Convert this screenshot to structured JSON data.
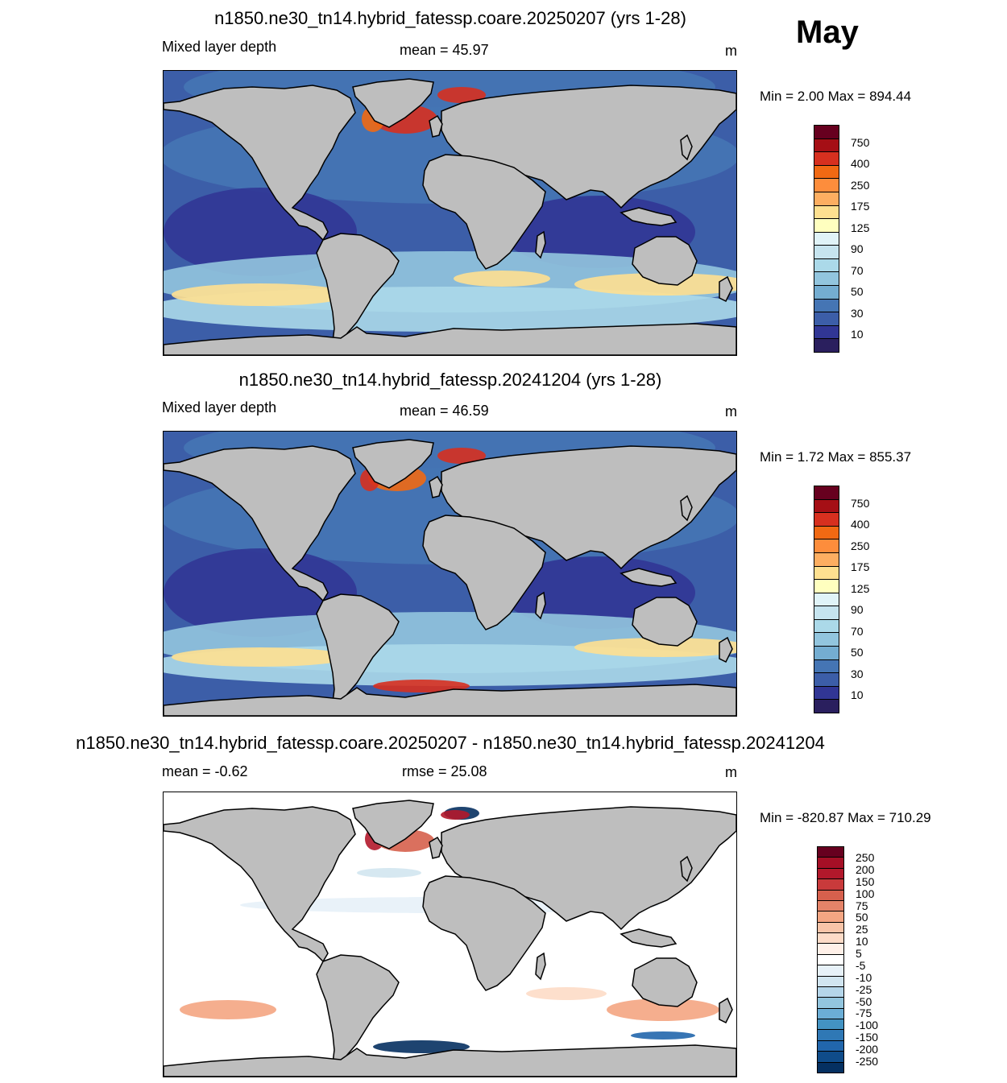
{
  "month": "May",
  "panels": [
    {
      "title": "n1850.ne30_tn14.hybrid_fatessp.coare.20250207 (yrs 1-28)",
      "left_label": "Mixed layer depth",
      "center_label": "mean =  45.97",
      "units": "m",
      "minmax": "Min =   2.00 Max = 894.44",
      "variant": "a"
    },
    {
      "title": "n1850.ne30_tn14.hybrid_fatessp.20241204 (yrs 1-28)",
      "left_label": "Mixed layer depth",
      "center_label": "mean =  46.59",
      "units": "m",
      "minmax": "Min =   1.72 Max = 855.37",
      "variant": "b"
    },
    {
      "title": "n1850.ne30_tn14.hybrid_fatessp.coare.20250207 - n1850.ne30_tn14.hybrid_fatessp.20241204",
      "left_label": "mean =  -0.62",
      "center_label": "rmse =  25.08",
      "units": "m",
      "minmax": "Min = -820.87 Max = 710.29",
      "variant": "diff"
    }
  ],
  "colorbars": {
    "depth": {
      "labels": [
        "750",
        "400",
        "250",
        "175",
        "125",
        "90",
        "70",
        "50",
        "30",
        "10"
      ],
      "colors": [
        "#67001f",
        "#a50f15",
        "#d7301f",
        "#f16913",
        "#fd8d3c",
        "#fdae61",
        "#fee090",
        "#ffffbf",
        "#e0f3f8",
        "#c6e4ef",
        "#abd9e9",
        "#92c5de",
        "#74add1",
        "#4575b4",
        "#3c5ea8",
        "#313695",
        "#2a1f5e"
      ]
    },
    "diff": {
      "labels": [
        "250",
        "200",
        "150",
        "100",
        "75",
        "50",
        "25",
        "10",
        "5",
        "-5",
        "-10",
        "-25",
        "-50",
        "-75",
        "-100",
        "-150",
        "-200",
        "-250"
      ],
      "colors": [
        "#67001f",
        "#a50f26",
        "#b2182b",
        "#c93a3b",
        "#d6604d",
        "#e58368",
        "#f4a582",
        "#f8c4a8",
        "#fddbc7",
        "#fff0e8",
        "#ffffff",
        "#e7f1f8",
        "#d1e5f0",
        "#b5d6ea",
        "#92c5de",
        "#6baed6",
        "#4393c3",
        "#2f78b5",
        "#2166ac",
        "#0f4c8a",
        "#053061"
      ]
    }
  }
}
